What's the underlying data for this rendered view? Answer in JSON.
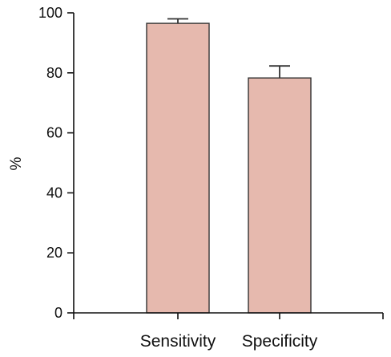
{
  "chart_data": {
    "type": "bar",
    "title": "",
    "xlabel": "",
    "ylabel": "%",
    "categories": [
      "Sensitivity",
      "Specificity"
    ],
    "values": [
      96.5,
      78.3
    ],
    "error_upper": [
      1.5,
      4.0
    ],
    "ylim": [
      0,
      100
    ],
    "yticks": [
      0,
      20,
      40,
      60,
      80,
      100
    ],
    "ytick_labels": [
      "0",
      "20",
      "40",
      "60",
      "80",
      "100"
    ],
    "grid": false,
    "legend": "none",
    "bar_color": "#e6b9ae",
    "bar_edge_color": "#333333",
    "axis_color": "#111111"
  }
}
